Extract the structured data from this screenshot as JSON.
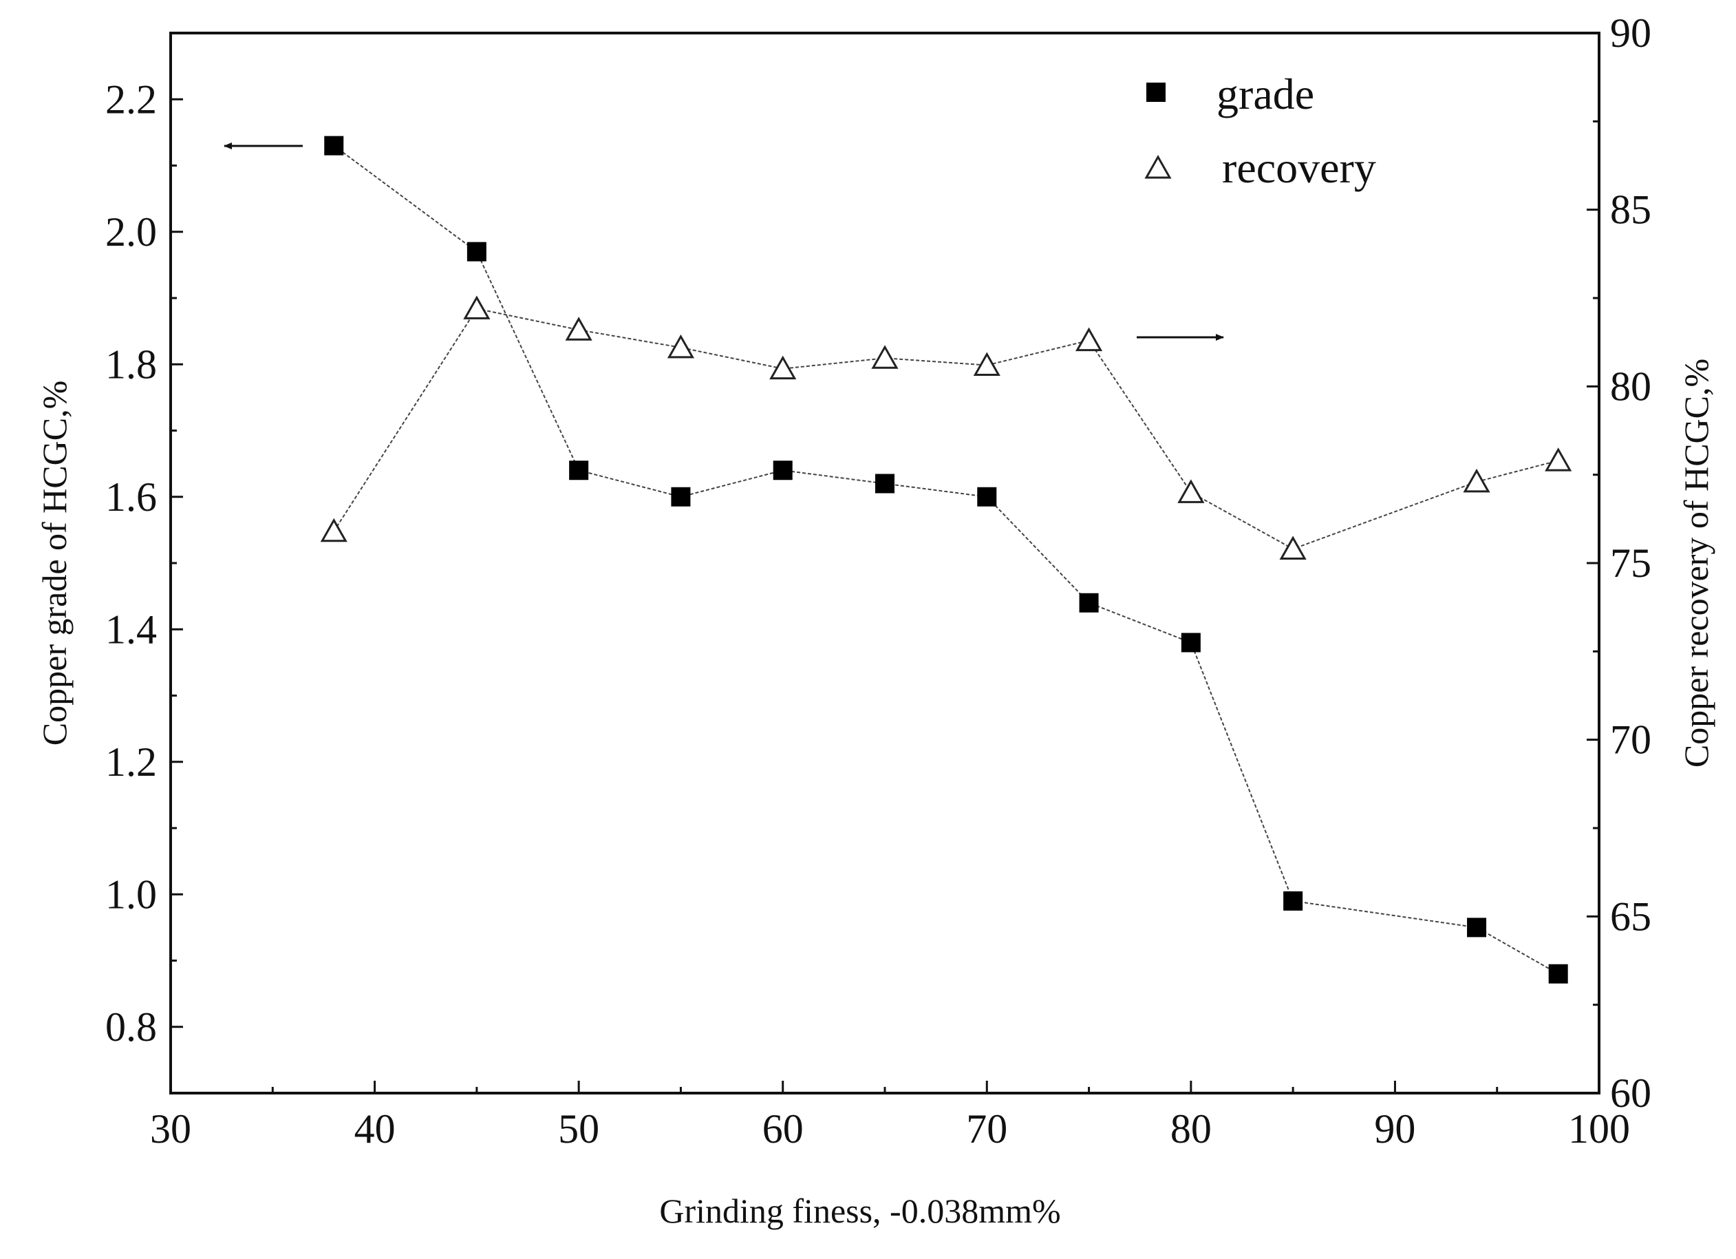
{
  "chart_data": {
    "type": "line",
    "title": "",
    "xlabel": "Grinding finess, -0.038mm%",
    "ylabel_left": "Copper grade of HCGC,%",
    "ylabel_right": "Copper recovery of HCGC,%",
    "xlim": [
      30,
      100
    ],
    "ylim_left": [
      0.7,
      2.3
    ],
    "ylim_right": [
      60,
      90
    ],
    "x_ticks": [
      "30",
      "40",
      "50",
      "60",
      "70",
      "80",
      "90",
      "100"
    ],
    "y_left_ticks": [
      "0.8",
      "1.0",
      "1.2",
      "1.4",
      "1.6",
      "1.8",
      "2.0",
      "2.2"
    ],
    "y_right_ticks": [
      "60",
      "65",
      "70",
      "75",
      "80",
      "85",
      "90"
    ],
    "grid": false,
    "legend_position": "top-right",
    "series": [
      {
        "name": "grade",
        "axis": "left",
        "marker": "filled-square",
        "x": [
          38,
          45,
          50,
          55,
          60,
          65,
          70,
          75,
          80,
          85,
          94,
          98
        ],
        "values": [
          2.13,
          1.97,
          1.64,
          1.6,
          1.64,
          1.62,
          1.6,
          1.44,
          1.38,
          0.99,
          0.95,
          0.88
        ]
      },
      {
        "name": "recovery",
        "axis": "right",
        "marker": "open-triangle",
        "x": [
          38,
          45,
          50,
          55,
          60,
          65,
          70,
          75,
          80,
          85,
          94,
          98
        ],
        "values": [
          75.9,
          82.2,
          81.6,
          81.1,
          80.5,
          80.8,
          80.6,
          81.3,
          77.0,
          75.4,
          77.3,
          77.9
        ]
      }
    ],
    "annotations": [
      {
        "type": "arrow",
        "direction": "left",
        "points_to_axis": "left",
        "near_series": "grade"
      },
      {
        "type": "arrow",
        "direction": "right",
        "points_to_axis": "right",
        "near_series": "recovery"
      }
    ]
  }
}
